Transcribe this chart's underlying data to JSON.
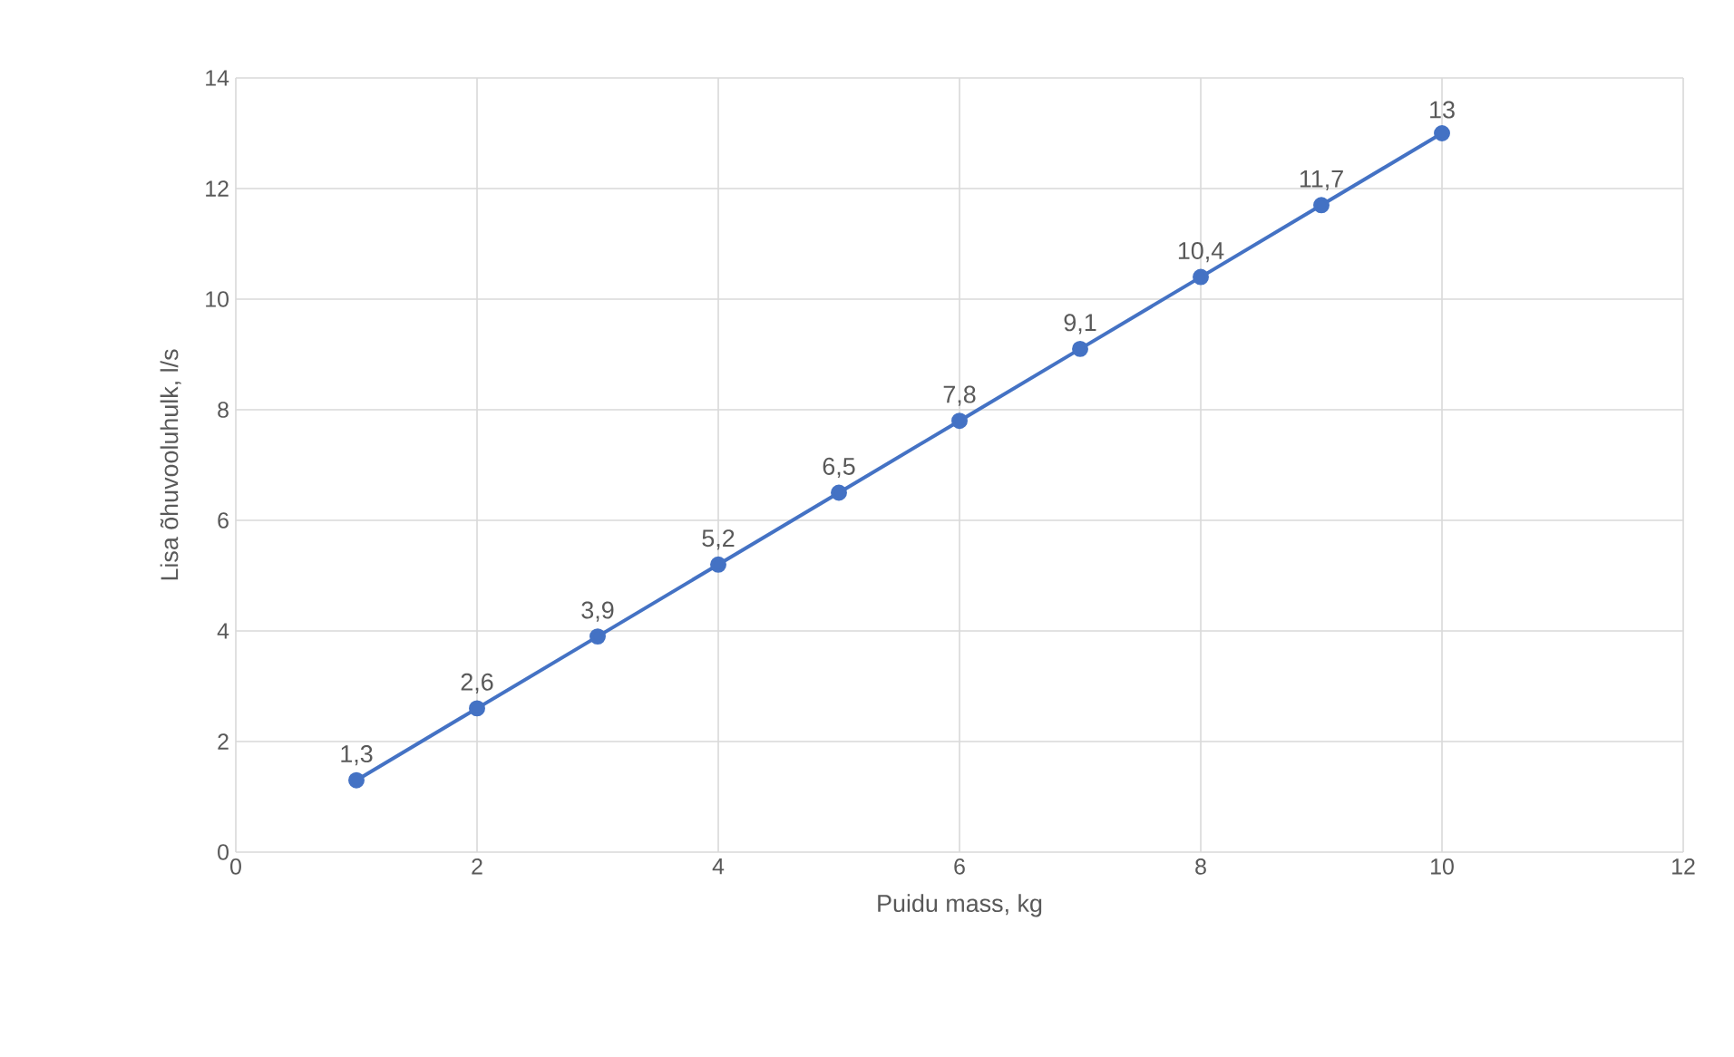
{
  "chart_data": {
    "type": "line",
    "xlabel": "Puidu mass, kg",
    "ylabel": "Lisa õhuvooluhulk, l/s",
    "x": [
      1,
      2,
      3,
      4,
      5,
      6,
      7,
      8,
      9,
      10
    ],
    "series": [
      {
        "color": "#4472c4",
        "values": [
          1.3,
          2.6,
          3.9,
          5.2,
          6.5,
          7.8,
          9.1,
          10.4,
          11.7,
          13
        ]
      }
    ],
    "value_labels": [
      "1,3",
      "2,6",
      "3,9",
      "5,2",
      "6,5",
      "7,8",
      "9,1",
      "10,4",
      "11,7",
      "13"
    ],
    "xlim": [
      0,
      12
    ],
    "xticks": [
      0,
      2,
      4,
      6,
      8,
      10,
      12
    ],
    "ylim": [
      0,
      14
    ],
    "yticks": [
      0,
      2,
      4,
      6,
      8,
      10,
      12,
      14
    ],
    "grid": true,
    "legend": false,
    "marker": "circle",
    "line_style": "solid"
  }
}
